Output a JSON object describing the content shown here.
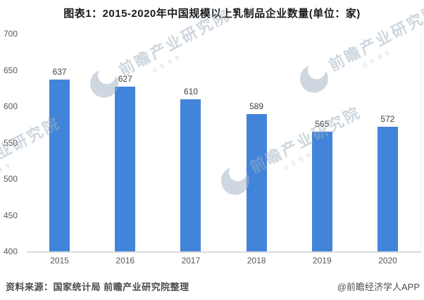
{
  "title": "图表1：2015-2020年中国规模以上乳制品企业数量(单位：家)",
  "chart_data": {
    "type": "bar",
    "categories": [
      "2015",
      "2016",
      "2017",
      "2018",
      "2019",
      "2020"
    ],
    "values": [
      637,
      627,
      610,
      589,
      565,
      572
    ],
    "title": "图表1：2015-2020年中国规模以上乳制品企业数量(单位：家)",
    "xlabel": "",
    "ylabel": "",
    "ylim": [
      400,
      700
    ],
    "yticks": [
      700,
      650,
      600,
      550,
      500,
      450,
      400
    ],
    "grid": false,
    "legend_position": "none",
    "value_labels": true
  },
  "footer": {
    "source": "资料来源：国家统计局 前瞻产业研究院整理",
    "credit": "@前瞻经济学人APP"
  },
  "watermark": {
    "text": "前瞻产业研究院",
    "subtext": "0599"
  },
  "colors": {
    "bar": "#4384db",
    "axis_line": "#dcdcdc",
    "plot_right_line": "#e9e9e9",
    "tick_text": "#595959",
    "value_text": "#404040",
    "title_text": "#1a1a1a",
    "source_text": "#4a4a4a",
    "credit_text": "#4d4d4d",
    "watermark": "#9fb0c0",
    "background": "#ffffff"
  }
}
